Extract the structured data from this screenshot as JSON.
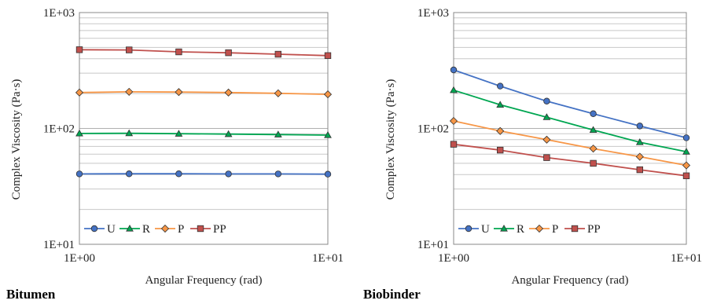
{
  "chart_data": [
    {
      "type": "line",
      "panel_label": "Bitumen",
      "xlabel": "Angular Frequency (rad)",
      "ylabel": "Complex Viscosity (Pa·s)",
      "x_scale": "log",
      "y_scale": "log",
      "xlim": [
        1,
        10
      ],
      "ylim": [
        10,
        1000
      ],
      "x_ticks": [
        "1E+00",
        "1E+01"
      ],
      "y_ticks": [
        "1E+01",
        "1E+02",
        "1E+03"
      ],
      "grid": "horizontal minor",
      "legend_position": "bottom-left",
      "x": [
        1.0,
        1.585,
        2.512,
        3.981,
        6.31,
        10.0
      ],
      "series": [
        {
          "name": "U",
          "color": "#4472C4",
          "marker": "circle",
          "values": [
            40.5,
            40.6,
            40.6,
            40.5,
            40.5,
            40.3
          ]
        },
        {
          "name": "R",
          "color": "#00A651",
          "marker": "triangle",
          "values": [
            90.5,
            90.8,
            90.0,
            89.3,
            88.6,
            87.6
          ]
        },
        {
          "name": "P",
          "color": "#F79646",
          "marker": "diamond",
          "values": [
            204,
            207,
            206,
            204,
            201,
            197
          ]
        },
        {
          "name": "PP",
          "color": "#C0504D",
          "marker": "square",
          "values": [
            478,
            476,
            458,
            450,
            437,
            425
          ]
        }
      ]
    },
    {
      "type": "line",
      "panel_label": "Biobinder",
      "xlabel": "Angular Frequency (rad)",
      "ylabel": "Complex Viscosity (Pa·s)",
      "x_scale": "log",
      "y_scale": "log",
      "xlim": [
        1,
        10
      ],
      "ylim": [
        10,
        1000
      ],
      "x_ticks": [
        "1E+00",
        "1E+01"
      ],
      "y_ticks": [
        "1E+01",
        "1E+02",
        "1E+03"
      ],
      "grid": "horizontal minor",
      "legend_position": "bottom-left",
      "x": [
        1.0,
        1.585,
        2.512,
        3.981,
        6.31,
        10.0
      ],
      "series": [
        {
          "name": "U",
          "color": "#4472C4",
          "marker": "circle",
          "values": [
            320,
            232,
            172,
            134,
            105,
            83
          ]
        },
        {
          "name": "R",
          "color": "#00A651",
          "marker": "triangle",
          "values": [
            214,
            160,
            125,
            97,
            76,
            63
          ]
        },
        {
          "name": "P",
          "color": "#F79646",
          "marker": "diamond",
          "values": [
            116,
            95,
            80,
            67,
            57,
            48
          ]
        },
        {
          "name": "PP",
          "color": "#C0504D",
          "marker": "square",
          "values": [
            73,
            65,
            56,
            50,
            44,
            39
          ]
        }
      ]
    }
  ]
}
